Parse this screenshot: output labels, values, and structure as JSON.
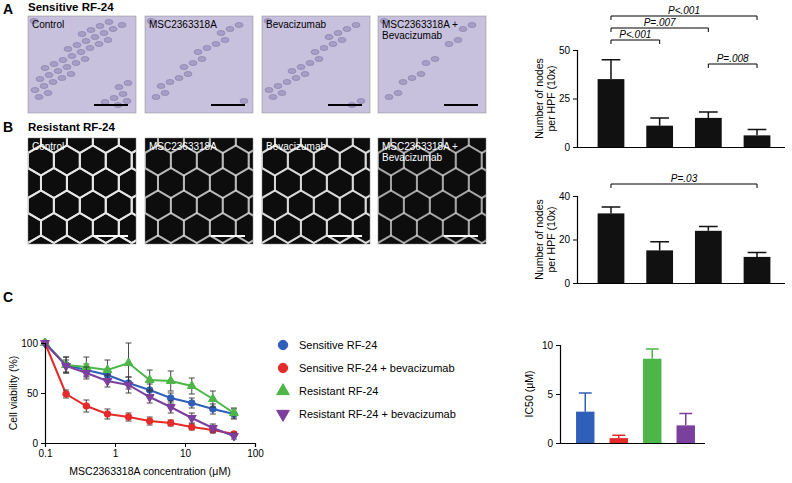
{
  "chart_data": [
    {
      "type": "bar",
      "panel": "A",
      "title": "Sensitive RF-24",
      "images": [
        "Control",
        "MSC2363318A",
        "Bevacizumab",
        "MSC2363318A + Bevacizumab"
      ],
      "categories": [
        null,
        null,
        null,
        null
      ],
      "values": [
        35,
        11,
        15,
        6
      ],
      "errors": [
        10,
        4,
        3,
        3
      ],
      "color": "#111111",
      "y_label": "Number of nodes per HPF (10x)",
      "ylim": [
        0,
        50
      ],
      "yticks": [
        0,
        25,
        50
      ],
      "comparisons": [
        {
          "label": "P<.001",
          "groups": [
            0,
            3
          ]
        },
        {
          "label": "P=.007",
          "groups": [
            0,
            2
          ]
        },
        {
          "label": "P<.001",
          "groups": [
            0,
            1
          ]
        },
        {
          "label": "P=.008",
          "groups": [
            2,
            3
          ]
        }
      ]
    },
    {
      "type": "bar",
      "panel": "B",
      "title": "Resistant RF-24",
      "images": [
        "Control",
        "MSC2363318A",
        "Bevacizumab",
        "MSC2363318A + Bevacizumab"
      ],
      "categories": [
        null,
        null,
        null,
        null
      ],
      "values": [
        32,
        15,
        24,
        12
      ],
      "errors": [
        3,
        4,
        2,
        2
      ],
      "color": "#111111",
      "y_label": "Number of nodes per HPF (10x)",
      "ylim": [
        0,
        40
      ],
      "yticks": [
        0,
        20,
        40
      ],
      "comparisons": [
        {
          "label": "P=.03",
          "groups": [
            0,
            3
          ]
        }
      ]
    },
    {
      "type": "line",
      "panel": "C",
      "x": [
        0.1,
        0.2,
        0.39,
        0.78,
        1.56,
        3.13,
        6.25,
        12.5,
        25,
        50
      ],
      "series": [
        {
          "name": "Sensitive RF-24",
          "color": "#2f5fb8",
          "marker": "circle",
          "values": [
            100,
            78,
            73,
            68,
            60,
            53,
            45,
            40,
            34,
            29
          ],
          "errors": [
            0,
            8,
            6,
            6,
            6,
            6,
            5,
            5,
            5,
            5
          ]
        },
        {
          "name": "Sensitive RF-24 + bevacizumab",
          "color": "#e52a2a",
          "marker": "circle",
          "values": [
            100,
            49,
            37,
            29,
            26,
            22,
            20,
            16,
            13,
            9
          ],
          "errors": [
            0,
            4,
            6,
            5,
            4,
            4,
            3,
            3,
            3,
            2
          ]
        },
        {
          "name": "Resistant RF-24",
          "color": "#4cb648",
          "marker": "triangle",
          "values": [
            100,
            78,
            76,
            73,
            80,
            63,
            62,
            57,
            44,
            30
          ],
          "errors": [
            0,
            8,
            10,
            10,
            20,
            10,
            10,
            8,
            8,
            5
          ]
        },
        {
          "name": "Resistant RF-24 + bevacizumab",
          "color": "#7b3f9e",
          "marker": "triangle-down",
          "values": [
            100,
            77,
            70,
            62,
            58,
            46,
            36,
            25,
            15,
            7
          ],
          "errors": [
            0,
            6,
            6,
            6,
            8,
            6,
            6,
            5,
            4,
            3
          ]
        }
      ],
      "x_label": "MSC2363318A concentration (μM)",
      "y_label": "Cell viability (%)",
      "log": "x",
      "xlim": [
        0.1,
        100
      ],
      "xticks": [
        0.1,
        1,
        10,
        100
      ],
      "ylim": [
        0,
        100
      ],
      "yticks": [
        0,
        50,
        100
      ],
      "legend": "right"
    },
    {
      "type": "bar",
      "categories": [
        null,
        null,
        null,
        null
      ],
      "values": [
        3.2,
        0.5,
        8.6,
        1.8
      ],
      "errors": [
        1.9,
        0.3,
        1.0,
        1.2
      ],
      "colors": [
        "#2f5fb8",
        "#e52a2a",
        "#4cb648",
        "#7b3f9e"
      ],
      "y_label": "IC50 (μM)",
      "ylim": [
        0,
        10
      ],
      "yticks": [
        0,
        5,
        10
      ]
    }
  ]
}
